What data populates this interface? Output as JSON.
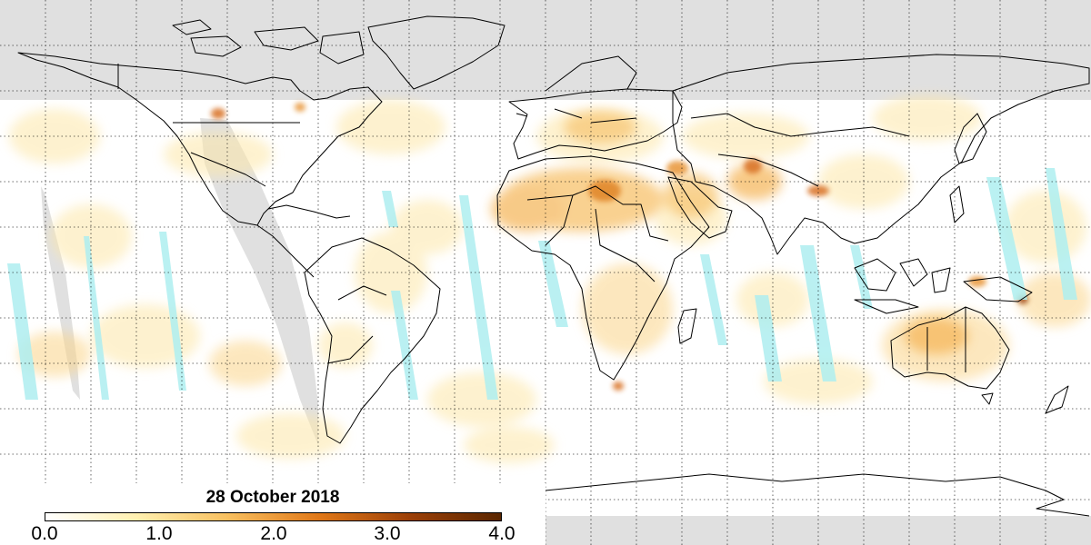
{
  "map": {
    "nodata_color": "#e0e0e0",
    "grid": true,
    "ocean_color": "#ffffff",
    "low_value_color": "#aeeef0"
  },
  "legend": {
    "title": "28 October 2018",
    "ticks": [
      "0.0",
      "1.0",
      "2.0",
      "3.0",
      "4.0"
    ],
    "range": [
      0.0,
      4.0
    ],
    "colors": [
      "#ffffff",
      "#fff0b0",
      "#f8c060",
      "#e07818",
      "#9c4008",
      "#5a2600"
    ]
  }
}
